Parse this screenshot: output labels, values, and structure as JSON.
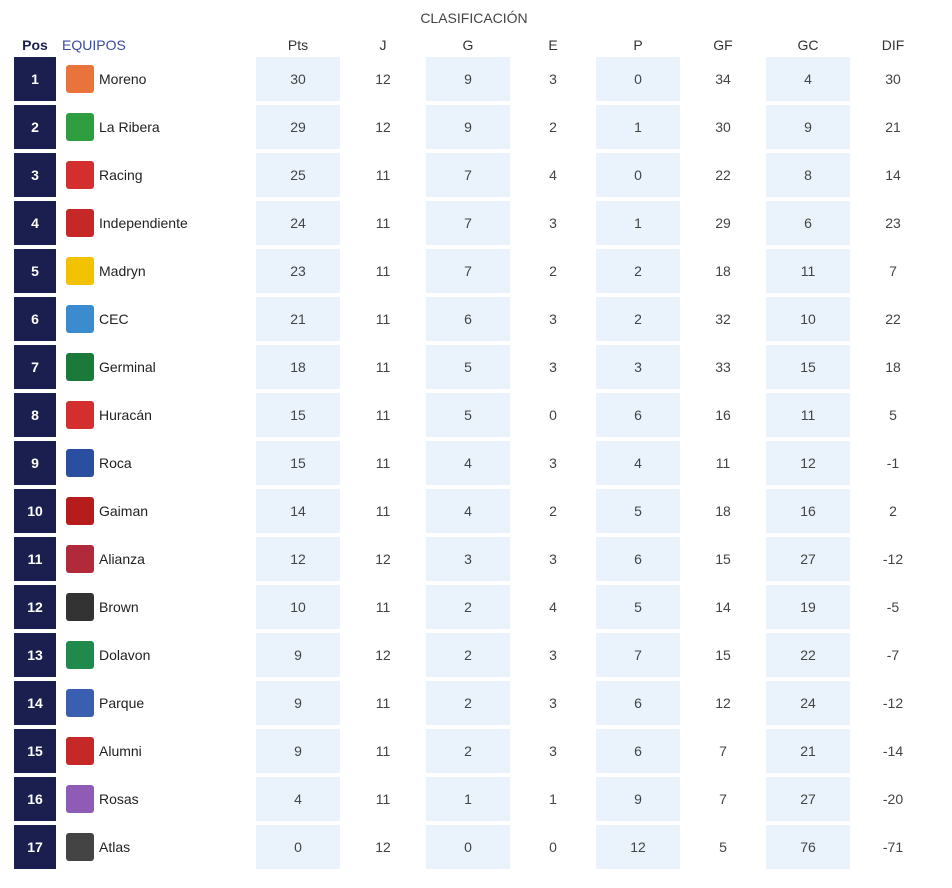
{
  "title": "CLASIFICACIÓN",
  "table": {
    "header": [
      "Pos",
      "EQUIPOS",
      "Pts",
      "J",
      "G",
      "E",
      "P",
      "GF",
      "GC",
      "DIF"
    ],
    "rows": [
      [
        1,
        "Moreno",
        30,
        12,
        9,
        3,
        0,
        34,
        4,
        30
      ],
      [
        2,
        "La Ribera",
        29,
        12,
        9,
        2,
        1,
        30,
        9,
        21
      ],
      [
        3,
        "Racing",
        25,
        11,
        7,
        4,
        0,
        22,
        8,
        14
      ],
      [
        4,
        "Independiente",
        24,
        11,
        7,
        3,
        1,
        29,
        6,
        23
      ],
      [
        5,
        "Madryn",
        23,
        11,
        7,
        2,
        2,
        18,
        11,
        7
      ],
      [
        6,
        "CEC",
        21,
        11,
        6,
        3,
        2,
        32,
        10,
        22
      ],
      [
        7,
        "Germinal",
        18,
        11,
        5,
        3,
        3,
        33,
        15,
        18
      ],
      [
        8,
        "Huracán",
        15,
        11,
        5,
        0,
        6,
        16,
        11,
        5
      ],
      [
        9,
        "Roca",
        15,
        11,
        4,
        3,
        4,
        11,
        12,
        -1
      ],
      [
        10,
        "Gaiman",
        14,
        11,
        4,
        2,
        5,
        18,
        16,
        2
      ],
      [
        11,
        "Alianza",
        12,
        12,
        3,
        3,
        6,
        15,
        27,
        -12
      ],
      [
        12,
        "Brown",
        10,
        11,
        2,
        4,
        5,
        14,
        19,
        -5
      ],
      [
        13,
        "Dolavon",
        9,
        12,
        2,
        3,
        7,
        15,
        22,
        -7
      ],
      [
        14,
        "Parque",
        9,
        11,
        2,
        3,
        6,
        12,
        24,
        -12
      ],
      [
        15,
        "Alumni",
        9,
        11,
        2,
        3,
        6,
        7,
        21,
        -14
      ],
      [
        16,
        "Rosas",
        4,
        11,
        1,
        1,
        9,
        7,
        27,
        -20
      ],
      [
        17,
        "Atlas",
        0,
        12,
        0,
        0,
        12,
        5,
        76,
        -71
      ]
    ]
  }
}
